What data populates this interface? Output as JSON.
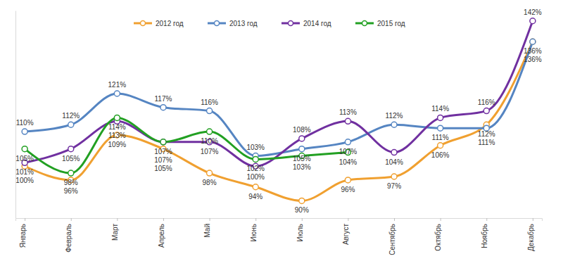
{
  "chart_data": {
    "type": "line",
    "categories": [
      "Январь",
      "Февраль",
      "Март",
      "Апрель",
      "Май",
      "Июнь",
      "Июль",
      "Август",
      "Сентябрь",
      "Октябрь",
      "Ноябрь",
      "Декабрь"
    ],
    "series": [
      {
        "name": "2012 год",
        "color": "#f0a030",
        "marker": "circle",
        "values": [
          100,
          96,
          109,
          105,
          98,
          94,
          90,
          96,
          97,
          106,
          112,
          136
        ],
        "value_labels": [
          "100%",
          "96%",
          "109%",
          "105%",
          "98%",
          "94%",
          "90%",
          "96%",
          "97%",
          "106%",
          "112%",
          "136%"
        ]
      },
      {
        "name": "2013 год",
        "color": "#5585c2",
        "marker": "circle",
        "values": [
          110,
          112,
          121,
          117,
          116,
          103,
          105,
          107,
          112,
          111,
          111,
          136
        ],
        "value_labels": [
          "110%",
          "112%",
          "121%",
          "117%",
          "116%",
          "103%",
          "105%",
          "107%",
          "112%",
          "111%",
          "111%",
          "136%"
        ]
      },
      {
        "name": "2014 год",
        "color": "#7030a0",
        "marker": "circle",
        "values": [
          101,
          105,
          113,
          107,
          107,
          100,
          108,
          113,
          104,
          114,
          116,
          142
        ],
        "value_labels": [
          "101%",
          "105%",
          "113%",
          "107%",
          "107%",
          "100%",
          "108%",
          "113%",
          "104%",
          "114%",
          "116%",
          "142%"
        ]
      },
      {
        "name": "2015 год",
        "color": "#22a022",
        "marker": "circle",
        "values": [
          105,
          98,
          114,
          107,
          110,
          102,
          103,
          104,
          null,
          null,
          null,
          null
        ],
        "value_labels": [
          "105%",
          "98%",
          "114%",
          "107%",
          "110%",
          "102%",
          "103%",
          "104%",
          null,
          null,
          null,
          null
        ]
      }
    ],
    "ylim": [
      85,
      145
    ],
    "data_labels": true,
    "tick_labels": "x",
    "legend": "top"
  }
}
